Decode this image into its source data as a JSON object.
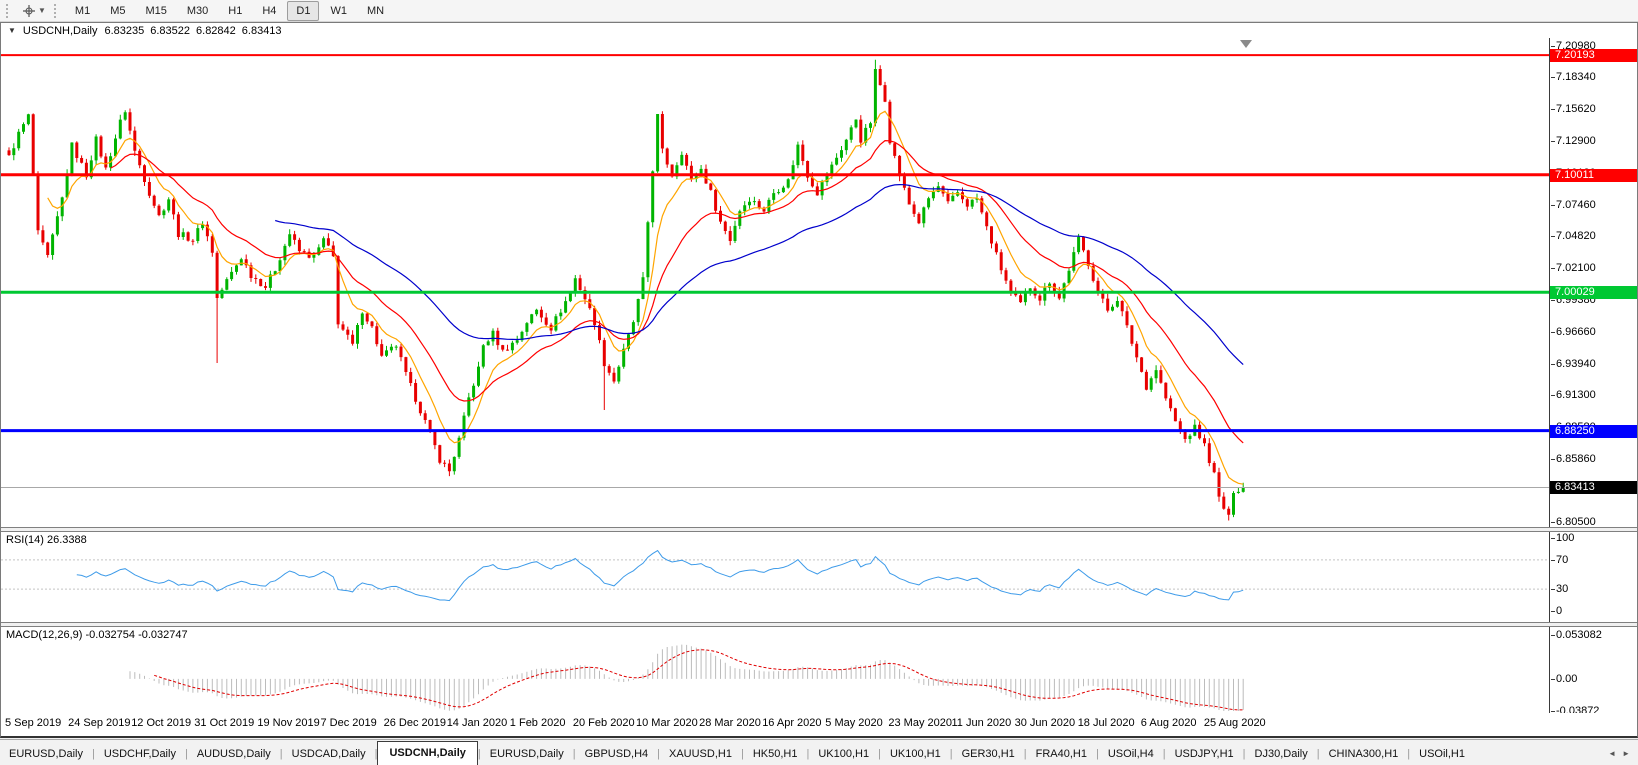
{
  "toolbar": {
    "timeframes": [
      "M1",
      "M5",
      "M15",
      "M30",
      "H1",
      "H4",
      "D1",
      "W1",
      "MN"
    ],
    "active_timeframe": "D1"
  },
  "chart": {
    "collapse_icon": "▼",
    "title_symbol": "USDCNH,Daily",
    "quotes": {
      "open": "6.83235",
      "high": "6.83522",
      "low": "6.82842",
      "close": "6.83413"
    }
  },
  "chart_data": {
    "type": "candlestick",
    "symbol": "USDCNH",
    "timeframe": "Daily",
    "ohlc": {
      "open": 6.83235,
      "high": 6.83522,
      "low": 6.82842,
      "close": 6.83413
    },
    "bars": 256,
    "price_axis": {
      "top_price": 7.2165,
      "bottom_price": 6.8005,
      "ticks": [
        "7.20980",
        "7.18340",
        "7.15620",
        "7.12900",
        "7.10180",
        "7.07460",
        "7.04820",
        "7.02100",
        "6.99380",
        "6.96660",
        "6.93940",
        "6.91300",
        "6.88580",
        "6.85860",
        "6.83140",
        "6.80500"
      ]
    },
    "x_labels": [
      "5 Sep 2019",
      "24 Sep 2019",
      "12 Oct 2019",
      "31 Oct 2019",
      "19 Nov 2019",
      "7 Dec 2019",
      "26 Dec 2019",
      "14 Jan 2020",
      "1 Feb 2020",
      "20 Feb 2020",
      "10 Mar 2020",
      "28 Mar 2020",
      "16 Apr 2020",
      "5 May 2020",
      "23 May 2020",
      "11 Jun 2020",
      "30 Jun 2020",
      "18 Jul 2020",
      "6 Aug 2020",
      "25 Aug 2020"
    ],
    "horizontal_lines": [
      {
        "price": 7.20193,
        "label": "7.20193",
        "color": "#FF0000",
        "width": 2
      },
      {
        "price": 7.10011,
        "label": "7.10011",
        "color": "#FF0000",
        "width": 3
      },
      {
        "price": 7.00029,
        "label": "7.00029",
        "color": "#00C832",
        "width": 3
      },
      {
        "price": 6.8825,
        "label": "6.88250",
        "color": "#0000FF",
        "width": 3
      }
    ],
    "current_price": {
      "value": 6.83413,
      "label": "6.83413",
      "line_color": "#A8A8A8",
      "label_bg": "#000000"
    },
    "candle_colors": {
      "up": "#00B400",
      "down": "#E80000"
    },
    "moving_averages": [
      {
        "type": "ema",
        "period": 8,
        "color": "#FFA500"
      },
      {
        "type": "ema",
        "period": 21,
        "color": "#FF0000"
      },
      {
        "type": "ema",
        "period": 55,
        "color": "#0000CC"
      }
    ],
    "approx_close_by_bar": [
      [
        0,
        7.115
      ],
      [
        2,
        7.135
      ],
      [
        4,
        7.15
      ],
      [
        6,
        7.05
      ],
      [
        8,
        7.03
      ],
      [
        11,
        7.08
      ],
      [
        13,
        7.125
      ],
      [
        16,
        7.1
      ],
      [
        18,
        7.13
      ],
      [
        20,
        7.105
      ],
      [
        23,
        7.145
      ],
      [
        24,
        7.155
      ],
      [
        26,
        7.12
      ],
      [
        29,
        7.085
      ],
      [
        31,
        7.065
      ],
      [
        33,
        7.08
      ],
      [
        35,
        7.05
      ],
      [
        38,
        7.045
      ],
      [
        40,
        7.06
      ],
      [
        42,
        7.035
      ],
      [
        43,
        6.995
      ],
      [
        45,
        7.01
      ],
      [
        48,
        7.03
      ],
      [
        50,
        7.015
      ],
      [
        53,
        7.005
      ],
      [
        55,
        7.02
      ],
      [
        58,
        7.05
      ],
      [
        60,
        7.035
      ],
      [
        63,
        7.03
      ],
      [
        65,
        7.045
      ],
      [
        67,
        7.03
      ],
      [
        68,
        6.975
      ],
      [
        71,
        6.955
      ],
      [
        73,
        6.985
      ],
      [
        75,
        6.97
      ],
      [
        77,
        6.945
      ],
      [
        80,
        6.955
      ],
      [
        82,
        6.93
      ],
      [
        84,
        6.91
      ],
      [
        87,
        6.88
      ],
      [
        89,
        6.858
      ],
      [
        91,
        6.848
      ],
      [
        93,
        6.875
      ],
      [
        95,
        6.91
      ],
      [
        97,
        6.935
      ],
      [
        98,
        6.955
      ],
      [
        100,
        6.965
      ],
      [
        102,
        6.95
      ],
      [
        105,
        6.96
      ],
      [
        107,
        6.975
      ],
      [
        109,
        6.985
      ],
      [
        112,
        6.97
      ],
      [
        114,
        6.985
      ],
      [
        116,
        7.0
      ],
      [
        117,
        7.012
      ],
      [
        119,
        6.995
      ],
      [
        121,
        6.975
      ],
      [
        123,
        6.94
      ],
      [
        125,
        6.925
      ],
      [
        127,
        6.95
      ],
      [
        129,
        6.975
      ],
      [
        131,
        7.01
      ],
      [
        132,
        7.06
      ],
      [
        134,
        7.15
      ],
      [
        135,
        7.12
      ],
      [
        137,
        7.1
      ],
      [
        139,
        7.12
      ],
      [
        141,
        7.095
      ],
      [
        143,
        7.105
      ],
      [
        145,
        7.085
      ],
      [
        147,
        7.06
      ],
      [
        149,
        7.045
      ],
      [
        151,
        7.07
      ],
      [
        153,
        7.08
      ],
      [
        156,
        7.07
      ],
      [
        158,
        7.085
      ],
      [
        161,
        7.095
      ],
      [
        163,
        7.125
      ],
      [
        165,
        7.1
      ],
      [
        167,
        7.085
      ],
      [
        169,
        7.1
      ],
      [
        171,
        7.115
      ],
      [
        173,
        7.13
      ],
      [
        175,
        7.148
      ],
      [
        176,
        7.13
      ],
      [
        178,
        7.145
      ],
      [
        179,
        7.188
      ],
      [
        181,
        7.165
      ],
      [
        182,
        7.13
      ],
      [
        184,
        7.1
      ],
      [
        186,
        7.075
      ],
      [
        188,
        7.06
      ],
      [
        190,
        7.08
      ],
      [
        192,
        7.09
      ],
      [
        194,
        7.075
      ],
      [
        196,
        7.085
      ],
      [
        198,
        7.075
      ],
      [
        200,
        7.08
      ],
      [
        202,
        7.055
      ],
      [
        205,
        7.02
      ],
      [
        207,
        7.0
      ],
      [
        209,
        6.99
      ],
      [
        211,
        7.005
      ],
      [
        213,
        6.995
      ],
      [
        215,
        7.01
      ],
      [
        217,
        6.995
      ],
      [
        219,
        7.02
      ],
      [
        221,
        7.045
      ],
      [
        223,
        7.025
      ],
      [
        225,
        7.0
      ],
      [
        227,
        6.985
      ],
      [
        229,
        6.995
      ],
      [
        231,
        6.97
      ],
      [
        233,
        6.945
      ],
      [
        235,
        6.92
      ],
      [
        237,
        6.935
      ],
      [
        239,
        6.91
      ],
      [
        241,
        6.89
      ],
      [
        243,
        6.875
      ],
      [
        245,
        6.885
      ],
      [
        247,
        6.87
      ],
      [
        249,
        6.845
      ],
      [
        250,
        6.825
      ],
      [
        252,
        6.808
      ],
      [
        253,
        6.832
      ],
      [
        255,
        6.834
      ]
    ],
    "special_wicks": [
      [
        43,
        "low",
        6.94
      ],
      [
        123,
        "low",
        6.9
      ],
      [
        179,
        "high",
        7.198
      ],
      [
        252,
        "low",
        6.806
      ]
    ],
    "indicators": {
      "rsi": {
        "name": "RSI(14)",
        "value": "26.3388",
        "period": 14,
        "levels": [
          70,
          30
        ],
        "scale_labels": [
          "100",
          "70",
          "30",
          "0"
        ],
        "scale_values": [
          100,
          70,
          30,
          0
        ],
        "line_color": "#3E9BE9"
      },
      "macd": {
        "name": "MACD(12,26,9)",
        "values": "-0.032754 -0.032747",
        "fast": 12,
        "slow": 26,
        "signal": 9,
        "scale_labels": [
          "0.053082",
          "0.00",
          "-0.03872"
        ],
        "scale_max": 0.053082,
        "scale_min": -0.03872,
        "histogram_color": "#BCBCBC",
        "signal_color": "#E00000"
      }
    }
  },
  "tabs": {
    "items": [
      "EURUSD,Daily",
      "USDCHF,Daily",
      "AUDUSD,Daily",
      "USDCAD,Daily",
      "USDCNH,Daily",
      "EURUSD,Daily",
      "GBPUSD,H4",
      "XAUUSD,H1",
      "HK50,H1",
      "UK100,H1",
      "UK100,H1",
      "GER30,H1",
      "FRA40,H1",
      "USOil,H4",
      "USDJPY,H1",
      "DJ30,Daily",
      "CHINA300,H1",
      "USOil,H1"
    ],
    "active_index": 4,
    "scroll_left_icon": "◄",
    "scroll_right_icon": "►"
  }
}
